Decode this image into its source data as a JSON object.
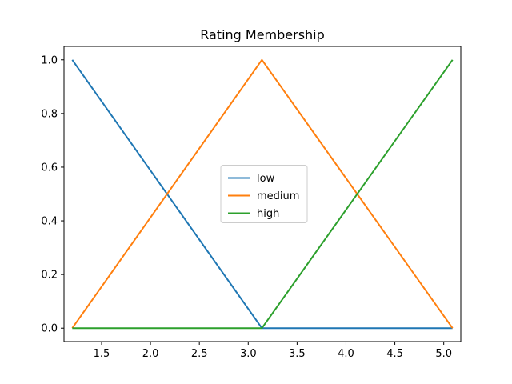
{
  "chart_data": {
    "type": "line",
    "title": "Rating Membership",
    "xlabel": "",
    "ylabel": "",
    "xlim": [
      1.1155,
      5.1745
    ],
    "ylim": [
      -0.05,
      1.05
    ],
    "xticks": [
      1.5,
      2.0,
      2.5,
      3.0,
      3.5,
      4.0,
      4.5,
      5.0
    ],
    "xtick_labels": [
      "1.5",
      "2.0",
      "2.5",
      "3.0",
      "3.5",
      "4.0",
      "4.5",
      "5.0"
    ],
    "yticks": [
      0.0,
      0.2,
      0.4,
      0.6,
      0.8,
      1.0
    ],
    "ytick_labels": [
      "0.0",
      "0.2",
      "0.4",
      "0.6",
      "0.8",
      "1.0"
    ],
    "grid": false,
    "legend_position": "center",
    "series": [
      {
        "name": "low",
        "color": "#1f77b4",
        "x": [
          1.2,
          3.14,
          5.09
        ],
        "y": [
          1.0,
          0.0,
          0.0
        ]
      },
      {
        "name": "medium",
        "color": "#ff7f0e",
        "x": [
          1.2,
          3.14,
          5.09
        ],
        "y": [
          0.0,
          1.0,
          0.0
        ]
      },
      {
        "name": "high",
        "color": "#2ca02c",
        "x": [
          1.2,
          3.14,
          5.09
        ],
        "y": [
          0.0,
          0.0,
          1.0
        ]
      }
    ]
  }
}
